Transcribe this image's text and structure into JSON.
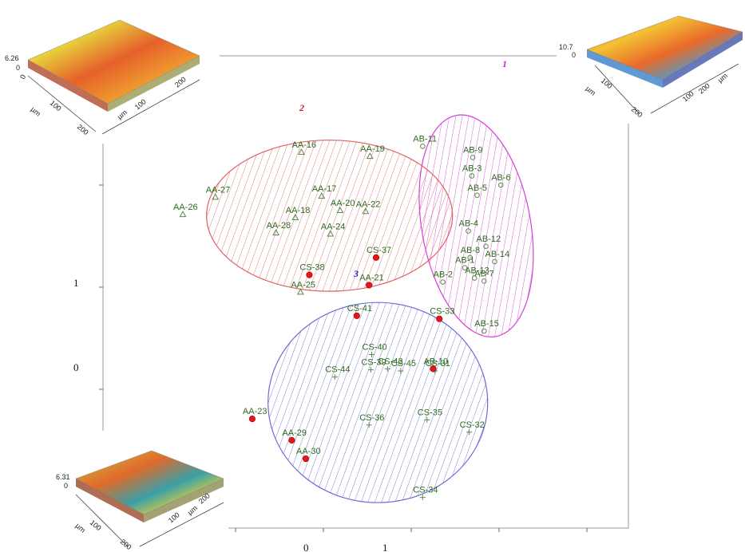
{
  "chart_data": {
    "type": "scatter",
    "title": "",
    "xlabel": "",
    "ylabel": "",
    "x_ticks": [
      "0",
      "1"
    ],
    "y_ticks": [
      "1",
      "0"
    ],
    "xlim": [
      -1.75,
      2.1
    ],
    "ylim": [
      -1.95,
      2.75
    ],
    "groups": [
      {
        "name": "1",
        "color": "#d63fd6",
        "label_color": "#c030c0",
        "center": [
          1.74,
          1.6
        ],
        "radii": [
          0.62,
          1.1
        ],
        "rotation": -10
      },
      {
        "name": "2",
        "color": "#e06060",
        "label_color": "#d02020",
        "center": [
          0.07,
          1.7
        ],
        "radii": [
          1.4,
          0.74
        ],
        "rotation": 0
      },
      {
        "name": "3",
        "color": "#6b6bd6",
        "label_color": "#2020c0",
        "center": [
          0.62,
          -0.13
        ],
        "radii": [
          1.25,
          0.98
        ],
        "rotation": 0
      }
    ],
    "series": [
      {
        "name": "AB",
        "marker": "circle",
        "points": [
          {
            "label": "AB-11",
            "x": 1.13,
            "y": 2.38
          },
          {
            "label": "AB-9",
            "x": 1.7,
            "y": 2.27
          },
          {
            "label": "AB-3",
            "x": 1.69,
            "y": 2.09
          },
          {
            "label": "AB-6",
            "x": 2.02,
            "y": 2.0
          },
          {
            "label": "AB-5",
            "x": 1.75,
            "y": 1.9
          },
          {
            "label": "AB-4",
            "x": 1.65,
            "y": 1.55
          },
          {
            "label": "AB-12",
            "x": 1.85,
            "y": 1.4
          },
          {
            "label": "AB-8",
            "x": 1.67,
            "y": 1.29
          },
          {
            "label": "AB-14",
            "x": 1.95,
            "y": 1.25
          },
          {
            "label": "AB-1",
            "x": 1.61,
            "y": 1.19
          },
          {
            "label": "AB-13",
            "x": 1.72,
            "y": 1.09
          },
          {
            "label": "AB-7",
            "x": 1.83,
            "y": 1.06
          },
          {
            "label": "AB-2",
            "x": 1.36,
            "y": 1.05
          },
          {
            "label": "AB-15",
            "x": 1.83,
            "y": 0.57
          }
        ]
      },
      {
        "name": "AA",
        "marker": "triangle",
        "points": [
          {
            "label": "AA-16",
            "x": -0.25,
            "y": 2.32
          },
          {
            "label": "AA-19",
            "x": 0.53,
            "y": 2.28
          },
          {
            "label": "AA-27",
            "x": -1.23,
            "y": 1.88
          },
          {
            "label": "AA-17",
            "x": -0.02,
            "y": 1.89
          },
          {
            "label": "AA-20",
            "x": 0.19,
            "y": 1.75
          },
          {
            "label": "AA-22",
            "x": 0.48,
            "y": 1.74
          },
          {
            "label": "AA-26",
            "x": -1.6,
            "y": 1.71
          },
          {
            "label": "AA-18",
            "x": -0.32,
            "y": 1.68
          },
          {
            "label": "AA-28",
            "x": -0.54,
            "y": 1.53
          },
          {
            "label": "AA-24",
            "x": 0.08,
            "y": 1.52
          },
          {
            "label": "AA-25",
            "x": -0.26,
            "y": 0.95
          }
        ]
      },
      {
        "name": "CS",
        "marker": "plus",
        "points": [
          {
            "label": "CS-40",
            "x": 0.55,
            "y": 0.34
          },
          {
            "label": "CS-39",
            "x": 0.54,
            "y": 0.19
          },
          {
            "label": "CS-43",
            "x": 0.73,
            "y": 0.2
          },
          {
            "label": "CS-45",
            "x": 0.88,
            "y": 0.18
          },
          {
            "label": "CS-31",
            "x": 1.27,
            "y": 0.18
          },
          {
            "label": "CS-44",
            "x": 0.13,
            "y": 0.12
          },
          {
            "label": "CS-36",
            "x": 0.52,
            "y": -0.35
          },
          {
            "label": "CS-35",
            "x": 1.18,
            "y": -0.3
          },
          {
            "label": "CS-32",
            "x": 1.66,
            "y": -0.42
          },
          {
            "label": "CS-34",
            "x": 1.13,
            "y": -1.06
          }
        ]
      },
      {
        "name": "red",
        "marker": "dot",
        "points": [
          {
            "label": "CS-37",
            "x": 0.6,
            "y": 1.29
          },
          {
            "label": "CS-38",
            "x": -0.16,
            "y": 1.12
          },
          {
            "label": "AA-21",
            "x": 0.52,
            "y": 1.02
          },
          {
            "label": "CS-41",
            "x": 0.38,
            "y": 0.72
          },
          {
            "label": "CS-33",
            "x": 1.32,
            "y": 0.69
          },
          {
            "label": "AB-10",
            "x": 1.25,
            "y": 0.2
          },
          {
            "label": "AA-23",
            "x": -0.81,
            "y": -0.29
          },
          {
            "label": "AA-29",
            "x": -0.36,
            "y": -0.5
          },
          {
            "label": "AA-30",
            "x": -0.2,
            "y": -0.68
          }
        ]
      }
    ]
  },
  "insets": [
    {
      "name": "inset-top-left",
      "z_label": "6.26",
      "origin_label": "0",
      "axis_ticks": [
        "0",
        "100",
        "200",
        "100",
        "200"
      ],
      "unit": "µm"
    },
    {
      "name": "inset-top-right",
      "z_label": "10.7",
      "origin_label": "0",
      "axis_ticks": [
        "100",
        "200",
        "100",
        "200"
      ],
      "unit": "µm"
    },
    {
      "name": "inset-bottom-left",
      "z_label": "6.31",
      "origin_label": "0",
      "axis_ticks": [
        "100",
        "200",
        "100",
        "200"
      ],
      "unit": "µm"
    }
  ]
}
